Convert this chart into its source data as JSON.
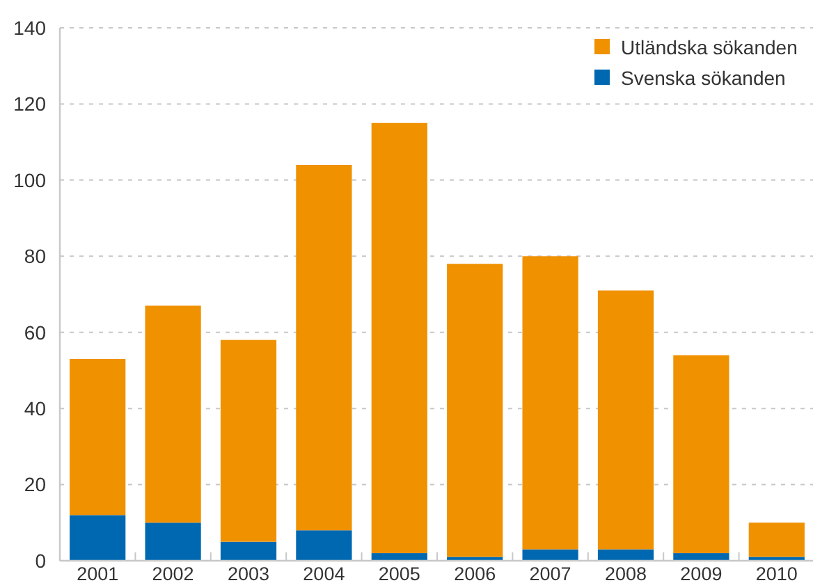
{
  "chart_data": {
    "type": "bar",
    "stacked": true,
    "categories": [
      "2001",
      "2002",
      "2003",
      "2004",
      "2005",
      "2006",
      "2007",
      "2008",
      "2009",
      "2010"
    ],
    "series": [
      {
        "name": "Svenska sökanden",
        "color": "#0068b1",
        "values": [
          12,
          10,
          5,
          8,
          2,
          1,
          3,
          3,
          2,
          1
        ]
      },
      {
        "name": "Utländska sökanden",
        "color": "#f09100",
        "values": [
          41,
          57,
          53,
          96,
          113,
          77,
          77,
          68,
          52,
          9
        ]
      }
    ],
    "ylim": [
      0,
      140
    ],
    "yticks": [
      0,
      20,
      40,
      60,
      80,
      100,
      120,
      140
    ],
    "grid": "y",
    "legend": "top right"
  }
}
